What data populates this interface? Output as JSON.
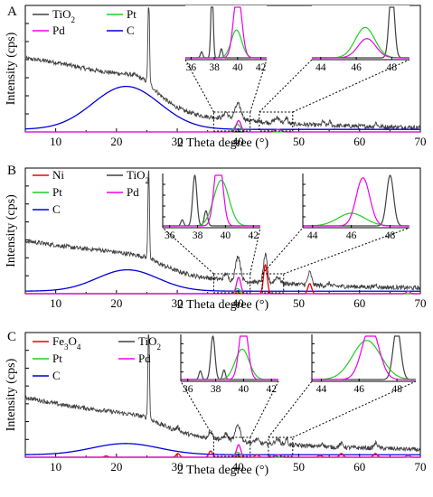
{
  "chart_data": [
    {
      "type": "line",
      "panel": "A",
      "xlabel": "2 Theta degree (°)",
      "ylabel": "Intensity (cps)",
      "xlim": [
        5,
        70
      ],
      "xticks": [
        10,
        20,
        30,
        40,
        50,
        60,
        70
      ],
      "legend": [
        {
          "name": "TiO2",
          "sub": true,
          "color": "#404040"
        },
        {
          "name": "Pt",
          "color": "#22cc22"
        },
        {
          "name": "Pd",
          "color": "#ee00ee"
        },
        {
          "name": "C",
          "color": "#0000dd"
        }
      ],
      "series": [
        {
          "name": "TiO2 (total)",
          "color": "#404040",
          "kind": "noisy",
          "points": [
            [
              5,
              0.58
            ],
            [
              7,
              0.57
            ],
            [
              10,
              0.55
            ],
            [
              13,
              0.52
            ],
            [
              16,
              0.49
            ],
            [
              19,
              0.47
            ],
            [
              21,
              0.46
            ],
            [
              23,
              0.45
            ],
            [
              25,
              0.4
            ],
            [
              27,
              0.3
            ],
            [
              29,
              0.22
            ],
            [
              31,
              0.17
            ],
            [
              33,
              0.14
            ],
            [
              35,
              0.12
            ],
            [
              38,
              0.11
            ],
            [
              42,
              0.09
            ],
            [
              46,
              0.07
            ],
            [
              50,
              0.06
            ],
            [
              55,
              0.05
            ],
            [
              60,
              0.045
            ],
            [
              65,
              0.04
            ],
            [
              70,
              0.035
            ]
          ],
          "peaks": [
            [
              25.3,
              0.77,
              0.12
            ],
            [
              38.0,
              0.05,
              0.3
            ],
            [
              40.0,
              0.12,
              0.5
            ],
            [
              46.5,
              0.04,
              0.5
            ],
            [
              48.0,
              0.05,
              0.2
            ],
            [
              54.0,
              0.03,
              0.2
            ],
            [
              55.1,
              0.03,
              0.2
            ],
            [
              62.7,
              0.03,
              0.2
            ]
          ]
        },
        {
          "name": "C",
          "color": "#0000dd",
          "kind": "gauss",
          "base": 0.02,
          "peaks": [
            [
              21.6,
              0.34,
              5.5
            ]
          ]
        },
        {
          "name": "Pt",
          "color": "#22cc22",
          "kind": "gauss",
          "base": 0.0,
          "peaks": [
            [
              39.9,
              0.06,
              0.5
            ]
          ]
        },
        {
          "name": "Pd",
          "color": "#ee00ee",
          "kind": "gauss",
          "base": 0.0,
          "peaks": [
            [
              40.1,
              0.09,
              0.4
            ],
            [
              46.6,
              0.02,
              0.5
            ]
          ]
        }
      ],
      "insets": [
        {
          "xlim": [
            35.5,
            42.5
          ],
          "ticks": [
            36,
            38,
            40,
            42
          ],
          "lines": [
            {
              "color": "#404040",
              "peaks": [
                [
                  37.8,
                  1.4,
                  0.1
                ],
                [
                  36.9,
                  0.12,
                  0.1
                ],
                [
                  38.6,
                  0.18,
                  0.1
                ]
              ]
            },
            {
              "color": "#22cc22",
              "peaks": [
                [
                  39.9,
                  0.55,
                  0.45
                ]
              ]
            },
            {
              "color": "#ee00ee",
              "peaks": [
                [
                  40.0,
                  1.3,
                  0.35
                ]
              ]
            }
          ]
        },
        {
          "xlim": [
            43.5,
            49
          ],
          "ticks": [
            44,
            46,
            48
          ],
          "lines": [
            {
              "color": "#404040",
              "peaks": [
                [
                  48.0,
                  1.4,
                  0.15
                ]
              ]
            },
            {
              "color": "#22cc22",
              "peaks": [
                [
                  46.5,
                  0.6,
                  0.55
                ]
              ]
            },
            {
              "color": "#ee00ee",
              "peaks": [
                [
                  46.6,
                  0.38,
                  0.5
                ]
              ]
            }
          ]
        }
      ],
      "zoom_boxes": [
        [
          36.0,
          42.0
        ],
        [
          43.5,
          49.0
        ]
      ]
    },
    {
      "type": "line",
      "panel": "B",
      "xlabel": "2 Theta degree (°)",
      "ylabel": "Intensity (cps)",
      "xlim": [
        5,
        70
      ],
      "xticks": [
        10,
        20,
        30,
        40,
        50,
        60,
        70
      ],
      "legend": [
        {
          "name": "Ni",
          "color": "#ee0000"
        },
        {
          "name": "TiO2",
          "sub": true,
          "color": "#404040"
        },
        {
          "name": "Pt",
          "color": "#22cc22"
        },
        {
          "name": "Pd",
          "color": "#ee00ee"
        },
        {
          "name": "C",
          "color": "#0000dd"
        }
      ],
      "series": [
        {
          "name": "TiO2 (total)",
          "color": "#404040",
          "kind": "noisy",
          "points": [
            [
              5,
              0.42
            ],
            [
              8,
              0.4
            ],
            [
              11,
              0.38
            ],
            [
              14,
              0.36
            ],
            [
              17,
              0.35
            ],
            [
              20,
              0.33
            ],
            [
              23,
              0.31
            ],
            [
              25,
              0.29
            ],
            [
              27,
              0.24
            ],
            [
              30,
              0.18
            ],
            [
              33,
              0.14
            ],
            [
              36,
              0.12
            ],
            [
              40,
              0.1
            ],
            [
              44,
              0.09
            ],
            [
              48,
              0.08
            ],
            [
              52,
              0.07
            ],
            [
              56,
              0.06
            ],
            [
              60,
              0.055
            ],
            [
              65,
              0.05
            ],
            [
              70,
              0.045
            ]
          ],
          "peaks": [
            [
              25.3,
              0.75,
              0.12
            ],
            [
              38.0,
              0.05,
              0.3
            ],
            [
              40.0,
              0.2,
              0.4
            ],
            [
              44.5,
              0.22,
              0.3
            ],
            [
              46.5,
              0.05,
              0.4
            ],
            [
              51.8,
              0.1,
              0.3
            ],
            [
              55.0,
              0.02,
              0.2
            ],
            [
              62.7,
              0.02,
              0.2
            ]
          ]
        },
        {
          "name": "C",
          "color": "#0000dd",
          "kind": "gauss",
          "base": 0.02,
          "peaks": [
            [
              21.8,
              0.17,
              5.0
            ]
          ]
        },
        {
          "name": "Ni",
          "color": "#ee0000",
          "kind": "gauss",
          "base": 0.0,
          "peaks": [
            [
              44.5,
              0.23,
              0.3
            ],
            [
              51.8,
              0.08,
              0.3
            ]
          ]
        },
        {
          "name": "Pt",
          "color": "#22cc22",
          "kind": "gauss",
          "base": 0.0,
          "peaks": [
            [
              39.9,
              0.04,
              0.5
            ]
          ]
        },
        {
          "name": "Pd",
          "color": "#ee00ee",
          "kind": "gauss",
          "base": 0.0,
          "peaks": [
            [
              40.1,
              0.13,
              0.35
            ],
            [
              68.0,
              0.02,
              0.3
            ]
          ]
        }
      ],
      "insets": [
        {
          "xlim": [
            35.5,
            42.5
          ],
          "ticks": [
            36,
            38,
            40,
            42
          ],
          "lines": [
            {
              "color": "#404040",
              "peaks": [
                [
                  37.8,
                  1.0,
                  0.15
                ],
                [
                  36.9,
                  0.12,
                  0.1
                ],
                [
                  38.6,
                  0.3,
                  0.12
                ]
              ]
            },
            {
              "color": "#22cc22",
              "peaks": [
                [
                  39.7,
                  0.9,
                  0.55
                ]
              ]
            },
            {
              "color": "#ee00ee",
              "peaks": [
                [
                  39.5,
                  1.4,
                  0.3
                ]
              ]
            }
          ]
        },
        {
          "xlim": [
            43.5,
            49
          ],
          "ticks": [
            44,
            46,
            48
          ],
          "lines": [
            {
              "color": "#404040",
              "peaks": [
                [
                  48.0,
                  1.0,
                  0.18
                ]
              ]
            },
            {
              "color": "#22cc22",
              "peaks": [
                [
                  46.0,
                  0.25,
                  0.7
                ]
              ]
            },
            {
              "color": "#ee00ee",
              "peaks": [
                [
                  46.6,
                  0.95,
                  0.35
                ]
              ]
            }
          ]
        }
      ],
      "zoom_boxes": [
        [
          36.0,
          42.0
        ],
        [
          44.0,
          47.5
        ]
      ]
    },
    {
      "type": "line",
      "panel": "C",
      "xlabel": "2 Theta degree (°)",
      "ylabel": "Intensity (cps)",
      "xlim": [
        5,
        70
      ],
      "xticks": [
        10,
        20,
        30,
        40,
        50,
        60,
        70
      ],
      "legend": [
        {
          "name": "Fe3O4",
          "sub": true,
          "color": "#ee0000"
        },
        {
          "name": "TiO2",
          "sub": true,
          "color": "#404040"
        },
        {
          "name": "Pt",
          "color": "#22cc22"
        },
        {
          "name": "Pd",
          "color": "#ee00ee"
        },
        {
          "name": "C",
          "color": "#0000dd"
        }
      ],
      "series": [
        {
          "name": "TiO2 (total)",
          "color": "#404040",
          "kind": "noisy",
          "points": [
            [
              5,
              0.48
            ],
            [
              8,
              0.45
            ],
            [
              11,
              0.42
            ],
            [
              14,
              0.4
            ],
            [
              17,
              0.38
            ],
            [
              20,
              0.36
            ],
            [
              23,
              0.34
            ],
            [
              25,
              0.32
            ],
            [
              27,
              0.27
            ],
            [
              30,
              0.21
            ],
            [
              33,
              0.17
            ],
            [
              36,
              0.15
            ],
            [
              40,
              0.13
            ],
            [
              44,
              0.11
            ],
            [
              48,
              0.1
            ],
            [
              52,
              0.09
            ],
            [
              56,
              0.08
            ],
            [
              60,
              0.075
            ],
            [
              65,
              0.07
            ],
            [
              70,
              0.06
            ]
          ],
          "peaks": [
            [
              25.3,
              0.78,
              0.12
            ],
            [
              30.1,
              0.03,
              0.3
            ],
            [
              35.5,
              0.06,
              0.3
            ],
            [
              38.0,
              0.05,
              0.3
            ],
            [
              40.0,
              0.13,
              0.4
            ],
            [
              43.1,
              0.03,
              0.3
            ],
            [
              46.5,
              0.04,
              0.4
            ],
            [
              48.0,
              0.05,
              0.2
            ],
            [
              53.9,
              0.03,
              0.2
            ],
            [
              57.0,
              0.03,
              0.3
            ],
            [
              62.7,
              0.04,
              0.3
            ]
          ]
        },
        {
          "name": "C",
          "color": "#0000dd",
          "kind": "gauss",
          "base": 0.02,
          "peaks": [
            [
              21.5,
              0.09,
              5.5
            ]
          ]
        },
        {
          "name": "Fe3O4",
          "color": "#ee0000",
          "kind": "gauss",
          "base": 0.0,
          "peaks": [
            [
              18.3,
              0.01,
              0.3
            ],
            [
              30.1,
              0.03,
              0.3
            ],
            [
              35.5,
              0.05,
              0.3
            ],
            [
              43.1,
              0.02,
              0.3
            ],
            [
              53.5,
              0.015,
              0.3
            ],
            [
              57.0,
              0.03,
              0.3
            ],
            [
              62.6,
              0.03,
              0.3
            ]
          ]
        },
        {
          "name": "Pt",
          "color": "#22cc22",
          "kind": "gauss",
          "base": 0.0,
          "peaks": [
            [
              39.9,
              0.04,
              0.5
            ]
          ]
        },
        {
          "name": "Pd",
          "color": "#ee00ee",
          "kind": "gauss",
          "base": 0.0,
          "peaks": [
            [
              40.1,
              0.1,
              0.35
            ],
            [
              46.6,
              0.02,
              0.4
            ],
            [
              68.0,
              0.015,
              0.3
            ]
          ]
        }
      ],
      "insets": [
        {
          "xlim": [
            35.5,
            42.5
          ],
          "ticks": [
            36,
            38,
            40,
            42
          ],
          "lines": [
            {
              "color": "#404040",
              "peaks": [
                [
                  37.8,
                  1.0,
                  0.15
                ],
                [
                  36.9,
                  0.2,
                  0.1
                ],
                [
                  38.6,
                  0.22,
                  0.1
                ]
              ]
            },
            {
              "color": "#22cc22",
              "peaks": [
                [
                  39.9,
                  0.7,
                  0.5
                ]
              ]
            },
            {
              "color": "#ee00ee",
              "peaks": [
                [
                  40.0,
                  1.4,
                  0.3
                ]
              ]
            }
          ]
        },
        {
          "xlim": [
            43.5,
            49
          ],
          "ticks": [
            44,
            46,
            48
          ],
          "lines": [
            {
              "color": "#404040",
              "peaks": [
                [
                  48.0,
                  1.2,
                  0.2
                ]
              ]
            },
            {
              "color": "#22cc22",
              "peaks": [
                [
                  46.4,
                  0.9,
                  0.75
                ]
              ]
            },
            {
              "color": "#ee00ee",
              "peaks": [
                [
                  46.6,
                  1.2,
                  0.45
                ]
              ]
            }
          ]
        }
      ],
      "zoom_boxes": [
        [
          36.0,
          42.0
        ],
        [
          45.0,
          49.0
        ]
      ]
    }
  ]
}
